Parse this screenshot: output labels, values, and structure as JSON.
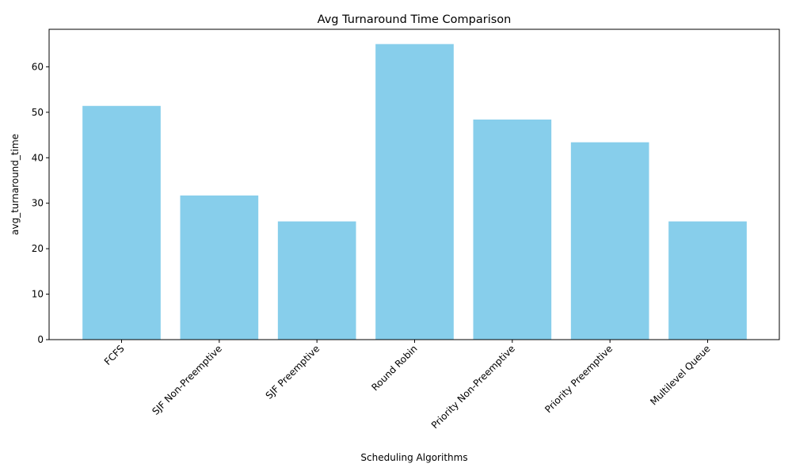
{
  "chart_data": {
    "type": "bar",
    "title": "Avg Turnaround Time Comparison",
    "xlabel": "Scheduling Algorithms",
    "ylabel": "avg_turnaround_time",
    "categories": [
      "FCFS",
      "SJF Non-Preemptive",
      "SJF Preemptive",
      "Round Robin",
      "Priority Non-Preemptive",
      "Priority Preemptive",
      "Multilevel Queue"
    ],
    "values": [
      51.4,
      31.7,
      26.0,
      65.0,
      48.4,
      43.4,
      26.0
    ],
    "ylim": [
      0,
      68.25
    ],
    "yticks": [
      0,
      10,
      20,
      30,
      40,
      50,
      60
    ],
    "ytick_labels": [
      "0",
      "10",
      "20",
      "30",
      "40",
      "50",
      "60"
    ],
    "bar_color": "#87CEEB",
    "grid": false,
    "legend": "none"
  }
}
